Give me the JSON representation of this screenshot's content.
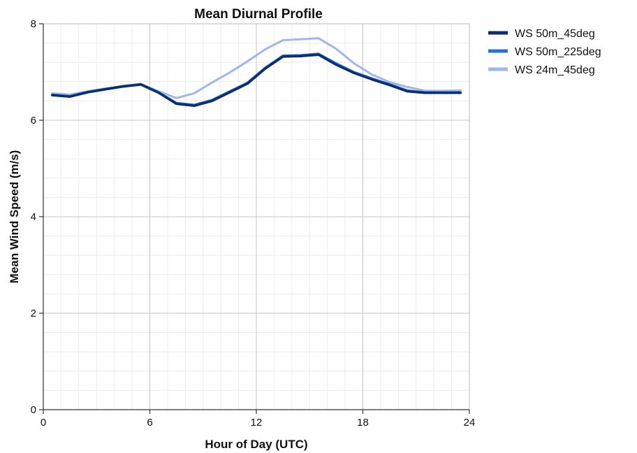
{
  "chart_data": {
    "type": "line",
    "title": "Mean Diurnal Profile",
    "xlabel": "Hour of Day (UTC)",
    "ylabel": "Mean Wind Speed (m/s)",
    "xlim": [
      0,
      24
    ],
    "ylim": [
      0,
      8
    ],
    "xticks": [
      0,
      6,
      12,
      18,
      24
    ],
    "yticks": [
      0,
      2,
      4,
      6,
      8
    ],
    "grid": true,
    "legend_position": "right",
    "x": [
      0.5,
      1.5,
      2.5,
      3.5,
      4.5,
      5.5,
      6.5,
      7.5,
      8.5,
      9.5,
      10.5,
      11.5,
      12.5,
      13.5,
      14.5,
      15.5,
      16.5,
      17.5,
      18.5,
      19.5,
      20.5,
      21.5,
      22.5,
      23.5
    ],
    "series": [
      {
        "name": "WS 50m_45deg",
        "color": "#0a2f6b",
        "values": [
          6.52,
          6.49,
          6.58,
          6.64,
          6.7,
          6.74,
          6.57,
          6.34,
          6.3,
          6.4,
          6.58,
          6.76,
          7.07,
          7.32,
          7.33,
          7.36,
          7.15,
          6.98,
          6.85,
          6.73,
          6.6,
          6.57,
          6.57,
          6.57
        ]
      },
      {
        "name": "WS 50m_225deg",
        "color": "#2a6fdc",
        "values": [
          6.53,
          6.5,
          6.59,
          6.65,
          6.71,
          6.75,
          6.58,
          6.36,
          6.32,
          6.42,
          6.6,
          6.78,
          7.09,
          7.34,
          7.35,
          7.38,
          7.18,
          7.0,
          6.87,
          6.75,
          6.62,
          6.58,
          6.58,
          6.58
        ]
      },
      {
        "name": "WS 24m_45deg",
        "color": "#9fb7ec",
        "values": [
          6.56,
          6.53,
          6.6,
          6.66,
          6.71,
          6.75,
          6.6,
          6.46,
          6.56,
          6.78,
          6.99,
          7.22,
          7.47,
          7.66,
          7.68,
          7.7,
          7.48,
          7.18,
          6.95,
          6.79,
          6.69,
          6.61,
          6.61,
          6.62
        ]
      }
    ]
  }
}
